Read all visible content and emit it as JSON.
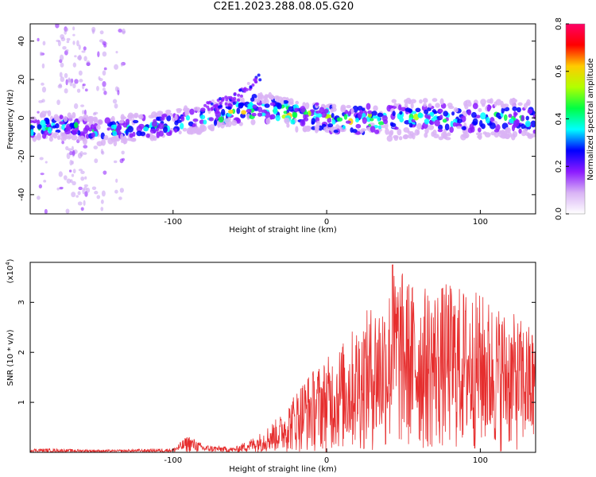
{
  "title": "C2E1.2023.288.08.05.G20",
  "colors": {
    "snr_line": "#e62e2e",
    "colorbar_stops": [
      "#ffffff",
      "#d9b3f5",
      "#8c1aff",
      "#0000ff",
      "#00ffff",
      "#00ff44",
      "#b2ff00",
      "#ffcc00",
      "#ff0000",
      "#ff0066"
    ]
  },
  "chart_data": [
    {
      "type": "heatmap",
      "name": "spectrogram",
      "xlabel": "Height of straight line (km)",
      "ylabel": "Frequency (Hz)",
      "xlim": [
        -193,
        136
      ],
      "ylim": [
        -50,
        49
      ],
      "xticks": [
        -100,
        0,
        100
      ],
      "yticks": [
        -40,
        -20,
        0,
        20,
        40
      ],
      "colorbar": {
        "label": "Normalized spectral amplitude",
        "range": [
          0.0,
          0.8
        ],
        "ticks": [
          0.0,
          0.2,
          0.4,
          0.6,
          0.8
        ],
        "tick_labels": [
          "0.0",
          "0.2",
          "0.4",
          "0.6",
          "0.8"
        ]
      },
      "ridge": {
        "description": "main frequency ridge (Hz) vs height (km)",
        "x": [
          -193,
          -170,
          -150,
          -120,
          -100,
          -80,
          -60,
          -45,
          -35,
          -20,
          0,
          20,
          40,
          60,
          80,
          100,
          120,
          136
        ],
        "y": [
          -5,
          -4,
          -7,
          -5,
          -3,
          0,
          3,
          5,
          5,
          1,
          0,
          -1,
          -1,
          0,
          -1,
          0,
          0,
          0
        ]
      },
      "branch": {
        "x": [
          -80,
          -60,
          -50,
          -43
        ],
        "y": [
          5,
          10,
          16,
          22
        ]
      }
    },
    {
      "type": "line",
      "name": "snr",
      "xlabel": "Height of straight line (km)",
      "ylabel": "SNR (10 * v/v)",
      "scale_label": "(x10",
      "scale_exponent": "4",
      "xlim": [
        -193,
        136
      ],
      "ylim": [
        0,
        3.8
      ],
      "xticks": [
        -100,
        0,
        100
      ],
      "yticks": [
        1,
        2,
        3
      ],
      "envelope": {
        "description": "approximate peak SNR envelope (x10^4) vs height (km)",
        "x": [
          -193,
          -140,
          -100,
          -90,
          -80,
          -60,
          -45,
          -30,
          -15,
          0,
          10,
          20,
          30,
          40,
          45,
          60,
          80,
          100,
          120,
          136
        ],
        "y": [
          0.08,
          0.05,
          0.08,
          0.35,
          0.15,
          0.1,
          0.35,
          0.75,
          1.5,
          1.9,
          2.2,
          2.6,
          3.0,
          3.3,
          3.75,
          3.3,
          3.4,
          3.2,
          2.8,
          2.5
        ]
      },
      "peak": {
        "x": 43,
        "y": 3.75
      }
    }
  ]
}
